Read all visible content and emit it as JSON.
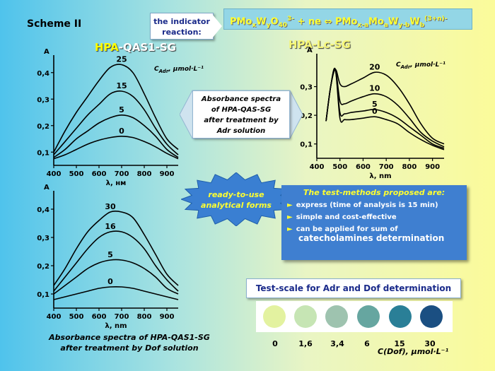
{
  "scheme_label": "Scheme II",
  "indicator_label": [
    "the indicator",
    "reaction:"
  ],
  "reaction": {
    "left_main": "PMo",
    "left_s1": "x",
    "left_mid": "W",
    "left_s2": "y",
    "left_o": "O",
    "left_s3": "40",
    "left_charge": "3-",
    "plus": " + ne ⇔ ",
    "right_main": "PMo",
    "right_s1": "x-a",
    "right_mo": "Mo",
    "right_s2": "a",
    "right_w": "W",
    "right_s3": "y-b",
    "right_w2": "W",
    "right_s4": "b",
    "right_charge": "(3+n)-"
  },
  "absorbance_note": [
    "Absorbance spectra",
    "of HPA-QAS-SG",
    "after treatment by",
    "Adr solution"
  ],
  "ready_label": [
    "ready-to-use",
    "analytical forms"
  ],
  "test_methods": {
    "title": "The test-methods proposed are:",
    "items": [
      "express (time of analysis is 15 min)",
      "simple and cost-effective",
      "can be applied for sum of"
    ],
    "last_line": "catecholamines determination"
  },
  "scale": {
    "title": "Test-scale for Adr and Dof determination",
    "labels": [
      "0",
      "1,6",
      "3,4",
      "6",
      "15",
      "30"
    ],
    "colors": [
      "#e3f2a0",
      "#c6e5b4",
      "#9ec3af",
      "#66a6a0",
      "#2a7f97",
      "#1b4f82"
    ],
    "unit": "C(Dof), μmol·L⁻¹"
  },
  "bottom_caption": [
    "Absorbance spectra of HPA-QAS1-SG",
    "after treatment by Dof solution"
  ],
  "chart_data": [
    {
      "type": "line",
      "title_prefix": "HPA",
      "title_suffix": "-QAS1-SG",
      "ylabel": "A",
      "xlabel": "λ, нм",
      "conc_label": "C",
      "conc_sub": "Adr",
      "conc_unit": ", μmol·L⁻¹",
      "xlim": [
        400,
        950
      ],
      "ylim": [
        0.05,
        0.45
      ],
      "xticks": [
        "400",
        "500",
        "600",
        "700",
        "800",
        "900"
      ],
      "yticks": [
        "0,1",
        "0,2",
        "0,3",
        "0,4"
      ],
      "series": [
        {
          "name": "25",
          "x": [
            400,
            450,
            500,
            550,
            600,
            650,
            700,
            750,
            800,
            850,
            900,
            950
          ],
          "y": [
            0.1,
            0.18,
            0.25,
            0.31,
            0.37,
            0.42,
            0.43,
            0.4,
            0.32,
            0.23,
            0.15,
            0.11
          ]
        },
        {
          "name": "15",
          "x": [
            400,
            450,
            500,
            550,
            600,
            650,
            700,
            750,
            800,
            850,
            900,
            950
          ],
          "y": [
            0.09,
            0.14,
            0.19,
            0.24,
            0.28,
            0.32,
            0.33,
            0.31,
            0.26,
            0.19,
            0.13,
            0.09
          ]
        },
        {
          "name": "5",
          "x": [
            400,
            450,
            500,
            550,
            600,
            650,
            700,
            750,
            800,
            850,
            900,
            950
          ],
          "y": [
            0.08,
            0.11,
            0.15,
            0.18,
            0.21,
            0.23,
            0.24,
            0.23,
            0.2,
            0.16,
            0.11,
            0.08
          ]
        },
        {
          "name": "0",
          "x": [
            400,
            450,
            500,
            550,
            600,
            650,
            700,
            750,
            800,
            850,
            900,
            950
          ],
          "y": [
            0.075,
            0.09,
            0.11,
            0.13,
            0.145,
            0.155,
            0.16,
            0.155,
            0.14,
            0.12,
            0.095,
            0.075
          ]
        }
      ]
    },
    {
      "type": "line",
      "title": "HPA-Lc-SG",
      "ylabel": "A",
      "xlabel": "λ, nm",
      "conc_label": "C",
      "conc_sub": "Adr",
      "conc_unit": ", μmol·L⁻¹",
      "xlim": [
        400,
        950
      ],
      "ylim": [
        0.05,
        0.4
      ],
      "xticks": [
        "400",
        "500",
        "600",
        "700",
        "800",
        "900"
      ],
      "yticks": [
        "0,1",
        "0,2",
        "0,3"
      ],
      "series": [
        {
          "name": "20",
          "x": [
            440,
            460,
            480,
            500,
            520,
            550,
            600,
            650,
            700,
            750,
            800,
            850,
            900,
            950
          ],
          "y": [
            0.18,
            0.3,
            0.36,
            0.31,
            0.3,
            0.31,
            0.33,
            0.35,
            0.34,
            0.3,
            0.24,
            0.17,
            0.12,
            0.1
          ]
        },
        {
          "name": "10",
          "x": [
            440,
            460,
            480,
            500,
            520,
            550,
            600,
            650,
            700,
            750,
            800,
            850,
            900,
            950
          ],
          "y": [
            0.18,
            0.3,
            0.36,
            0.25,
            0.24,
            0.25,
            0.265,
            0.275,
            0.265,
            0.235,
            0.19,
            0.14,
            0.11,
            0.09
          ]
        },
        {
          "name": "5",
          "x": [
            440,
            460,
            480,
            500,
            520,
            550,
            600,
            650,
            700,
            750,
            800,
            850,
            900,
            950
          ],
          "y": [
            0.18,
            0.3,
            0.36,
            0.21,
            0.205,
            0.21,
            0.215,
            0.22,
            0.21,
            0.19,
            0.16,
            0.13,
            0.1,
            0.085
          ]
        },
        {
          "name": "0",
          "x": [
            440,
            460,
            480,
            500,
            520,
            550,
            600,
            650,
            700,
            750,
            800,
            850,
            900,
            950
          ],
          "y": [
            0.18,
            0.3,
            0.36,
            0.19,
            0.185,
            0.185,
            0.19,
            0.195,
            0.185,
            0.17,
            0.14,
            0.115,
            0.095,
            0.08
          ]
        }
      ]
    },
    {
      "type": "line",
      "ylabel": "A",
      "xlabel": "λ, nm",
      "xlim": [
        400,
        950
      ],
      "ylim": [
        0.05,
        0.45
      ],
      "xticks": [
        "400",
        "500",
        "600",
        "700",
        "800",
        "900"
      ],
      "yticks": [
        "0,1",
        "0,2",
        "0,3",
        "0,4"
      ],
      "series": [
        {
          "name": "30",
          "x": [
            400,
            450,
            500,
            550,
            600,
            650,
            700,
            750,
            800,
            850,
            900,
            950
          ],
          "y": [
            0.13,
            0.19,
            0.26,
            0.32,
            0.36,
            0.39,
            0.39,
            0.37,
            0.31,
            0.24,
            0.17,
            0.13
          ]
        },
        {
          "name": "16",
          "x": [
            400,
            450,
            500,
            550,
            600,
            650,
            700,
            750,
            800,
            850,
            900,
            950
          ],
          "y": [
            0.11,
            0.16,
            0.21,
            0.26,
            0.3,
            0.32,
            0.32,
            0.3,
            0.26,
            0.2,
            0.15,
            0.11
          ]
        },
        {
          "name": "5",
          "x": [
            400,
            450,
            500,
            550,
            600,
            650,
            700,
            750,
            800,
            850,
            900,
            950
          ],
          "y": [
            0.1,
            0.13,
            0.16,
            0.19,
            0.21,
            0.22,
            0.22,
            0.21,
            0.19,
            0.16,
            0.12,
            0.1
          ]
        },
        {
          "name": "0",
          "x": [
            400,
            450,
            500,
            550,
            600,
            650,
            700,
            750,
            800,
            850,
            900,
            950
          ],
          "y": [
            0.08,
            0.09,
            0.1,
            0.11,
            0.12,
            0.125,
            0.125,
            0.12,
            0.11,
            0.1,
            0.09,
            0.08
          ]
        }
      ]
    }
  ]
}
